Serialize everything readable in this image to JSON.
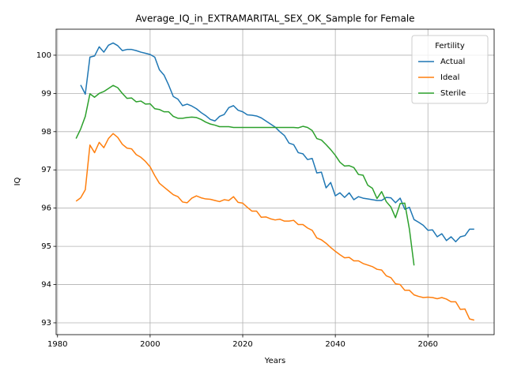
{
  "chart_data": {
    "type": "line",
    "title": "Average_IQ_in_EXTRAMARITAL_SEX_OK_Sample for Female",
    "x_label": "Years",
    "y_label": "IQ",
    "x": [
      1984,
      1985,
      1986,
      1987,
      1988,
      1989,
      1990,
      1991,
      1992,
      1993,
      1994,
      1995,
      1996,
      1997,
      1998,
      1999,
      2000,
      2001,
      2002,
      2003,
      2004,
      2005,
      2006,
      2007,
      2008,
      2009,
      2010,
      2011,
      2012,
      2013,
      2014,
      2015,
      2016,
      2017,
      2018,
      2019,
      2020,
      2021,
      2022,
      2023,
      2024,
      2025,
      2026,
      2027,
      2028,
      2029,
      2030,
      2031,
      2032,
      2033,
      2034,
      2035,
      2036,
      2037,
      2038,
      2039,
      2040,
      2041,
      2042,
      2043,
      2044,
      2045,
      2046,
      2047,
      2048,
      2049,
      2050,
      2051,
      2052,
      2053,
      2054,
      2055,
      2056,
      2057,
      2058,
      2059,
      2060,
      2061,
      2062,
      2063,
      2064,
      2065,
      2066,
      2067,
      2068,
      2069,
      2070
    ],
    "series": [
      {
        "name": "Actual",
        "color": "#1f77b4",
        "values": [
          null,
          99.22,
          98.98,
          99.95,
          99.98,
          100.22,
          100.08,
          100.26,
          100.32,
          100.25,
          100.12,
          100.15,
          100.15,
          100.12,
          100.08,
          100.05,
          100.02,
          99.95,
          99.62,
          99.48,
          99.22,
          98.92,
          98.85,
          98.68,
          98.72,
          98.67,
          98.6,
          98.5,
          98.42,
          98.32,
          98.28,
          98.4,
          98.45,
          98.63,
          98.68,
          98.56,
          98.52,
          98.44,
          98.43,
          98.41,
          98.36,
          98.28,
          98.2,
          98.12,
          98.0,
          97.9,
          97.7,
          97.66,
          97.45,
          97.42,
          97.27,
          97.3,
          96.92,
          96.94,
          96.53,
          96.67,
          96.32,
          96.4,
          96.28,
          96.4,
          96.22,
          96.3,
          96.26,
          96.24,
          96.22,
          96.2,
          96.2,
          96.28,
          96.27,
          96.14,
          96.26,
          95.97,
          96.02,
          95.7,
          95.63,
          95.55,
          95.42,
          95.43,
          95.25,
          95.33,
          95.15,
          95.25,
          95.12,
          95.25,
          95.28,
          95.45,
          95.45
        ]
      },
      {
        "name": "Ideal",
        "color": "#ff7f0e",
        "values": [
          96.18,
          96.27,
          96.48,
          97.65,
          97.45,
          97.72,
          97.58,
          97.82,
          97.95,
          97.85,
          97.67,
          97.57,
          97.55,
          97.4,
          97.33,
          97.22,
          97.08,
          96.85,
          96.65,
          96.55,
          96.45,
          96.35,
          96.3,
          96.16,
          96.14,
          96.26,
          96.32,
          96.27,
          96.24,
          96.23,
          96.2,
          96.17,
          96.22,
          96.2,
          96.3,
          96.15,
          96.13,
          96.02,
          95.92,
          95.92,
          95.76,
          95.77,
          95.72,
          95.69,
          95.71,
          95.66,
          95.66,
          95.68,
          95.57,
          95.57,
          95.48,
          95.42,
          95.22,
          95.17,
          95.08,
          94.97,
          94.87,
          94.78,
          94.7,
          94.71,
          94.62,
          94.62,
          94.55,
          94.51,
          94.47,
          94.4,
          94.38,
          94.23,
          94.18,
          94.02,
          94.0,
          93.85,
          93.85,
          93.73,
          93.69,
          93.66,
          93.67,
          93.66,
          93.63,
          93.66,
          93.62,
          93.55,
          93.55,
          93.35,
          93.36,
          93.1,
          93.07
        ]
      },
      {
        "name": "Sterile",
        "color": "#2ca02c",
        "values": [
          97.82,
          98.07,
          98.4,
          98.99,
          98.9,
          99.0,
          99.05,
          99.13,
          99.21,
          99.15,
          99.0,
          98.87,
          98.88,
          98.78,
          98.8,
          98.72,
          98.73,
          98.6,
          98.58,
          98.52,
          98.52,
          98.4,
          98.35,
          98.35,
          98.37,
          98.38,
          98.37,
          98.32,
          98.25,
          98.2,
          98.17,
          98.13,
          98.13,
          98.13,
          98.11,
          98.11,
          98.11,
          98.11,
          98.11,
          98.11,
          98.11,
          98.11,
          98.11,
          98.11,
          98.11,
          98.11,
          98.11,
          98.11,
          98.1,
          98.14,
          98.11,
          98.03,
          97.82,
          97.78,
          97.66,
          97.53,
          97.38,
          97.2,
          97.1,
          97.11,
          97.06,
          96.88,
          96.86,
          96.6,
          96.52,
          96.25,
          96.43,
          96.17,
          96.03,
          95.75,
          96.12,
          96.13,
          95.45,
          94.5,
          null,
          null,
          null,
          null,
          null,
          null,
          null,
          null,
          null,
          null,
          null,
          null,
          null
        ]
      }
    ],
    "xlim": [
      1979.7,
      2074.3
    ],
    "xticks": [
      1980,
      2000,
      2020,
      2040,
      2060
    ],
    "ylim": [
      92.69,
      100.68
    ],
    "yticks": [
      93,
      94,
      95,
      96,
      97,
      98,
      99,
      100
    ],
    "grid": true,
    "legend_title": "Fertility",
    "legend_loc": "upper right"
  }
}
